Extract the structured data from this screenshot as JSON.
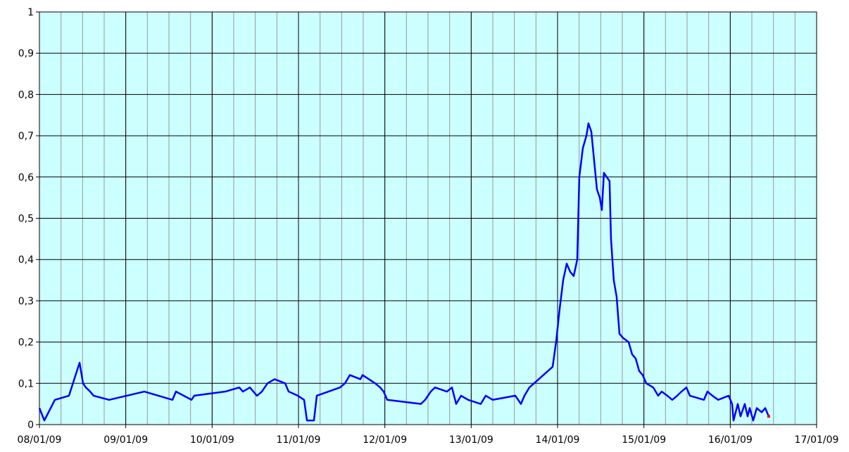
{
  "chart_data": {
    "type": "line",
    "x": [
      0,
      0.057,
      0.179,
      0.342,
      0.465,
      0.505,
      0.538,
      0.587,
      0.628,
      0.807,
      1.215,
      1.378,
      1.541,
      1.581,
      1.761,
      1.793,
      2.152,
      2.315,
      2.356,
      2.437,
      2.519,
      2.576,
      2.641,
      2.723,
      2.845,
      2.886,
      2.992,
      3.065,
      3.098,
      3.179,
      3.212,
      3.481,
      3.538,
      3.595,
      3.717,
      3.742,
      3.888,
      3.946,
      3.986,
      4.027,
      4.418,
      4.467,
      4.532,
      4.581,
      4.72,
      4.777,
      4.826,
      4.883,
      4.965,
      5.111,
      5.168,
      5.25,
      5.511,
      5.576,
      5.617,
      5.674,
      5.943,
      5.983,
      6.024,
      6.065,
      6.106,
      6.147,
      6.187,
      6.228,
      6.252,
      6.293,
      6.334,
      6.358,
      6.391,
      6.456,
      6.489,
      6.513,
      6.537,
      6.602,
      6.619,
      6.651,
      6.684,
      6.717,
      6.758,
      6.823,
      6.864,
      6.905,
      6.945,
      6.986,
      7.027,
      7.108,
      7.165,
      7.206,
      7.271,
      7.328,
      7.386,
      7.435,
      7.492,
      7.532,
      7.695,
      7.736,
      7.793,
      7.859,
      7.981,
      8.021,
      8.038,
      8.087,
      8.119,
      8.168,
      8.201,
      8.225,
      8.266,
      8.307,
      8.364,
      8.405,
      8.445
    ],
    "series": [
      {
        "color": "#0000ff",
        "values": [
          0.04,
          0.01,
          0.06,
          0.07,
          0.15,
          0.1,
          0.09,
          0.08,
          0.07,
          0.06,
          0.08,
          0.07,
          0.06,
          0.08,
          0.06,
          0.07,
          0.08,
          0.09,
          0.08,
          0.09,
          0.07,
          0.08,
          0.1,
          0.11,
          0.1,
          0.08,
          0.07,
          0.06,
          0.01,
          0.01,
          0.07,
          0.09,
          0.1,
          0.12,
          0.11,
          0.12,
          0.1,
          0.09,
          0.08,
          0.06,
          0.05,
          0.06,
          0.08,
          0.09,
          0.08,
          0.09,
          0.05,
          0.07,
          0.06,
          0.05,
          0.07,
          0.06,
          0.07,
          0.05,
          0.07,
          0.09,
          0.14,
          0.2,
          0.28,
          0.35,
          0.39,
          0.37,
          0.36,
          0.4,
          0.6,
          0.67,
          0.7,
          0.73,
          0.71,
          0.57,
          0.55,
          0.52,
          0.61,
          0.59,
          0.45,
          0.35,
          0.31,
          0.22,
          0.21,
          0.2,
          0.17,
          0.16,
          0.13,
          0.12,
          0.1,
          0.09,
          0.07,
          0.08,
          0.07,
          0.06,
          0.07,
          0.08,
          0.09,
          0.07,
          0.06,
          0.08,
          0.07,
          0.06,
          0.07,
          0.05,
          0.01,
          0.05,
          0.02,
          0.05,
          0.02,
          0.04,
          0.01,
          0.04,
          0.03,
          0.04,
          0.02
        ]
      }
    ],
    "last_point_color": "#ff0000",
    "xlim": [
      0,
      9
    ],
    "xticks": [
      {
        "value": 0,
        "label": "08/01/09"
      },
      {
        "value": 1,
        "label": "09/01/09"
      },
      {
        "value": 2,
        "label": "10/01/09"
      },
      {
        "value": 3,
        "label": "11/01/09"
      },
      {
        "value": 4,
        "label": "12/01/09"
      },
      {
        "value": 5,
        "label": "13/01/09"
      },
      {
        "value": 6,
        "label": "14/01/09"
      },
      {
        "value": 7,
        "label": "15/01/09"
      },
      {
        "value": 8,
        "label": "16/01/09"
      },
      {
        "value": 9,
        "label": "17/01/09"
      }
    ],
    "x_minor_step": 0.25,
    "ylim": [
      0,
      1
    ],
    "yticks": [
      0,
      {
        "value": 0.1,
        "label": "0,1"
      },
      {
        "value": 0.2,
        "label": "0,2"
      },
      {
        "value": 0.3,
        "label": "0,3"
      },
      {
        "value": 0.4,
        "label": "0,4"
      },
      {
        "value": 0.5,
        "label": "0,5"
      },
      {
        "value": 0.6,
        "label": "0,6"
      },
      {
        "value": 0.7,
        "label": "0,7"
      },
      {
        "value": 0.8,
        "label": "0,8"
      },
      {
        "value": 0.9,
        "label": "0,9"
      },
      1
    ],
    "grid": true,
    "plot_background": "#ccffff"
  }
}
